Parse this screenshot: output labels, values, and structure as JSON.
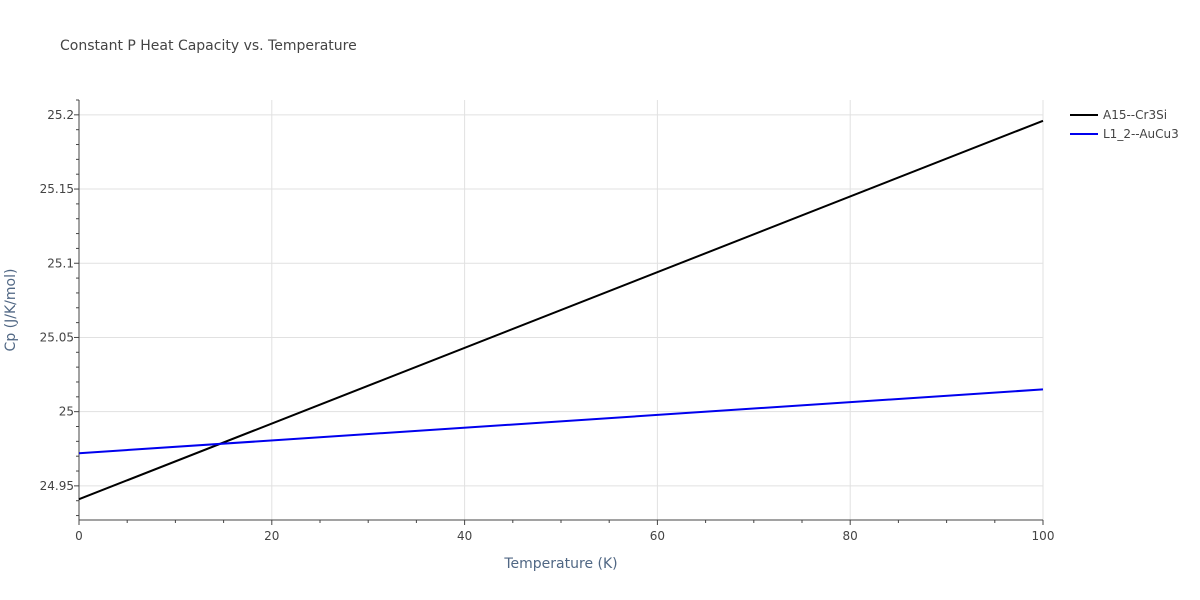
{
  "chart_data": {
    "type": "line",
    "title": "Constant P Heat Capacity vs. Temperature",
    "xlabel": "Temperature (K)",
    "ylabel": "Cp (J/K/mol)",
    "xlim": [
      0,
      100
    ],
    "ylim": [
      24.927,
      25.21
    ],
    "x_ticks": [
      0,
      20,
      40,
      60,
      80,
      100
    ],
    "x_tick_labels": [
      "0",
      "20",
      "40",
      "60",
      "80",
      "100"
    ],
    "y_ticks": [
      24.95,
      25.0,
      25.05,
      25.1,
      25.15,
      25.2
    ],
    "y_tick_labels": [
      "24.95",
      "25",
      "25.05",
      "25.1",
      "25.15",
      "25.2"
    ],
    "grid": true,
    "legend_position": "top-right outside",
    "series": [
      {
        "name": "A15--Cr3Si",
        "color": "#000000",
        "x": [
          0,
          100
        ],
        "values": [
          24.941,
          25.196
        ]
      },
      {
        "name": "L1_2--AuCu3",
        "color": "#0000ee",
        "x": [
          0,
          100
        ],
        "values": [
          24.972,
          25.015
        ]
      }
    ]
  }
}
